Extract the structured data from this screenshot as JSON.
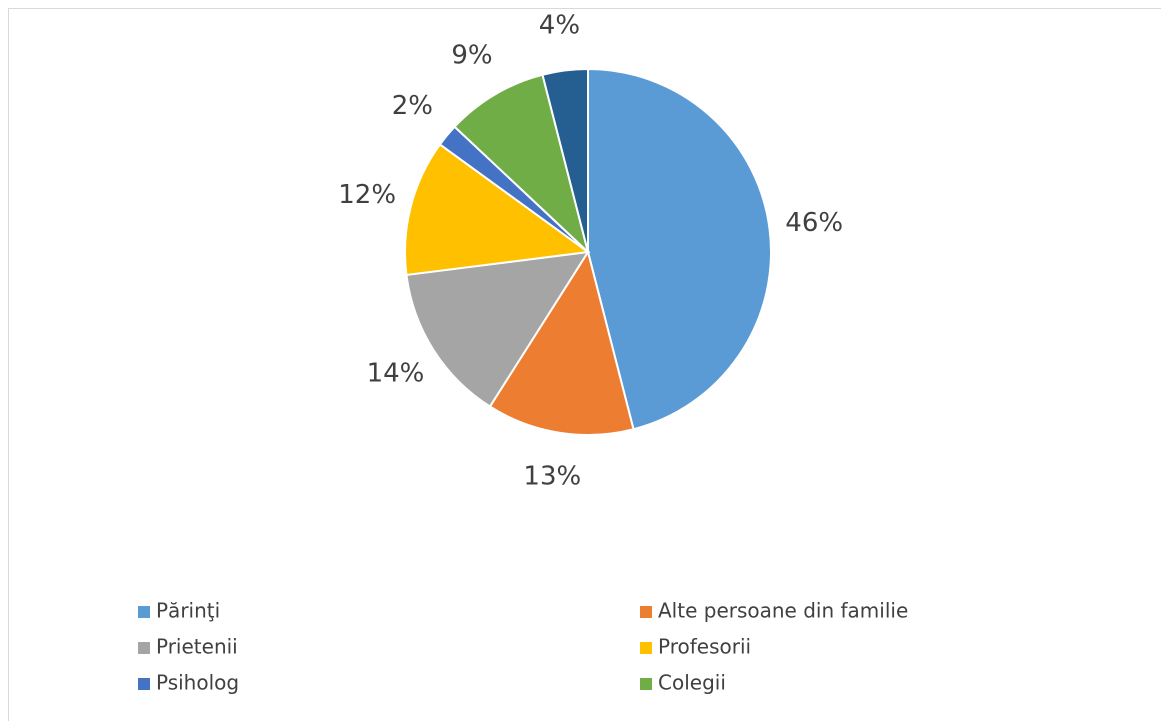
{
  "chart_data": {
    "type": "pie",
    "categories": [
      "Părinţi",
      "Alte persoane din familie",
      "Prietenii",
      "Profesorii",
      "Psiholog",
      "Colegii",
      null
    ],
    "values": [
      46,
      13,
      14,
      12,
      2,
      9,
      4
    ],
    "value_labels": [
      "46%",
      "13%",
      "14%",
      "12%",
      "2%",
      "9%",
      "4%"
    ],
    "colors": [
      "#5b9bd5",
      "#ed7d31",
      "#a5a5a5",
      "#ffc000",
      "#4472c4",
      "#70ad47",
      "#255e91"
    ],
    "legend": "bottom"
  }
}
